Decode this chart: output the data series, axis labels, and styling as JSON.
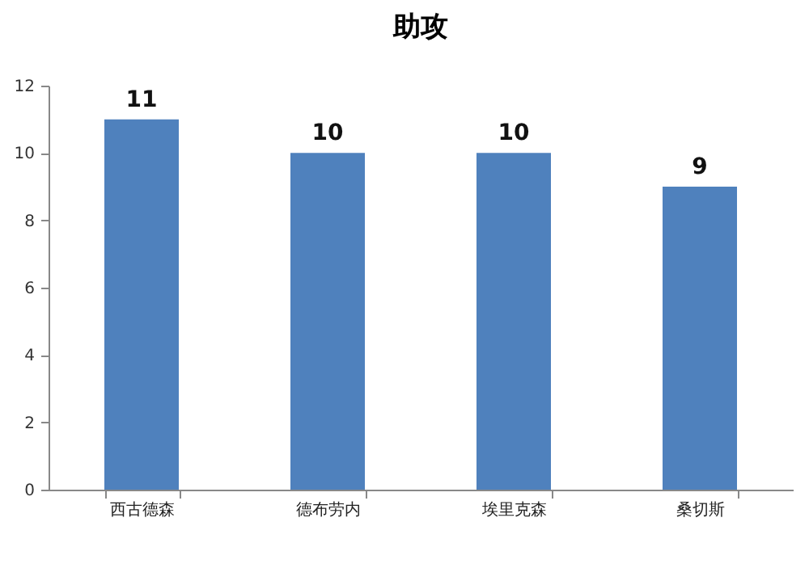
{
  "chart_data": {
    "type": "bar",
    "title": "助攻",
    "categories": [
      "西古德森",
      "德布劳内",
      "埃里克森",
      "桑切斯"
    ],
    "values": [
      11,
      10,
      10,
      9
    ],
    "color": "#4f81bd",
    "ylim": [
      0,
      12
    ],
    "yticks": [
      0,
      2,
      4,
      6,
      8,
      10,
      12
    ],
    "grid": false,
    "data_labels": true
  }
}
